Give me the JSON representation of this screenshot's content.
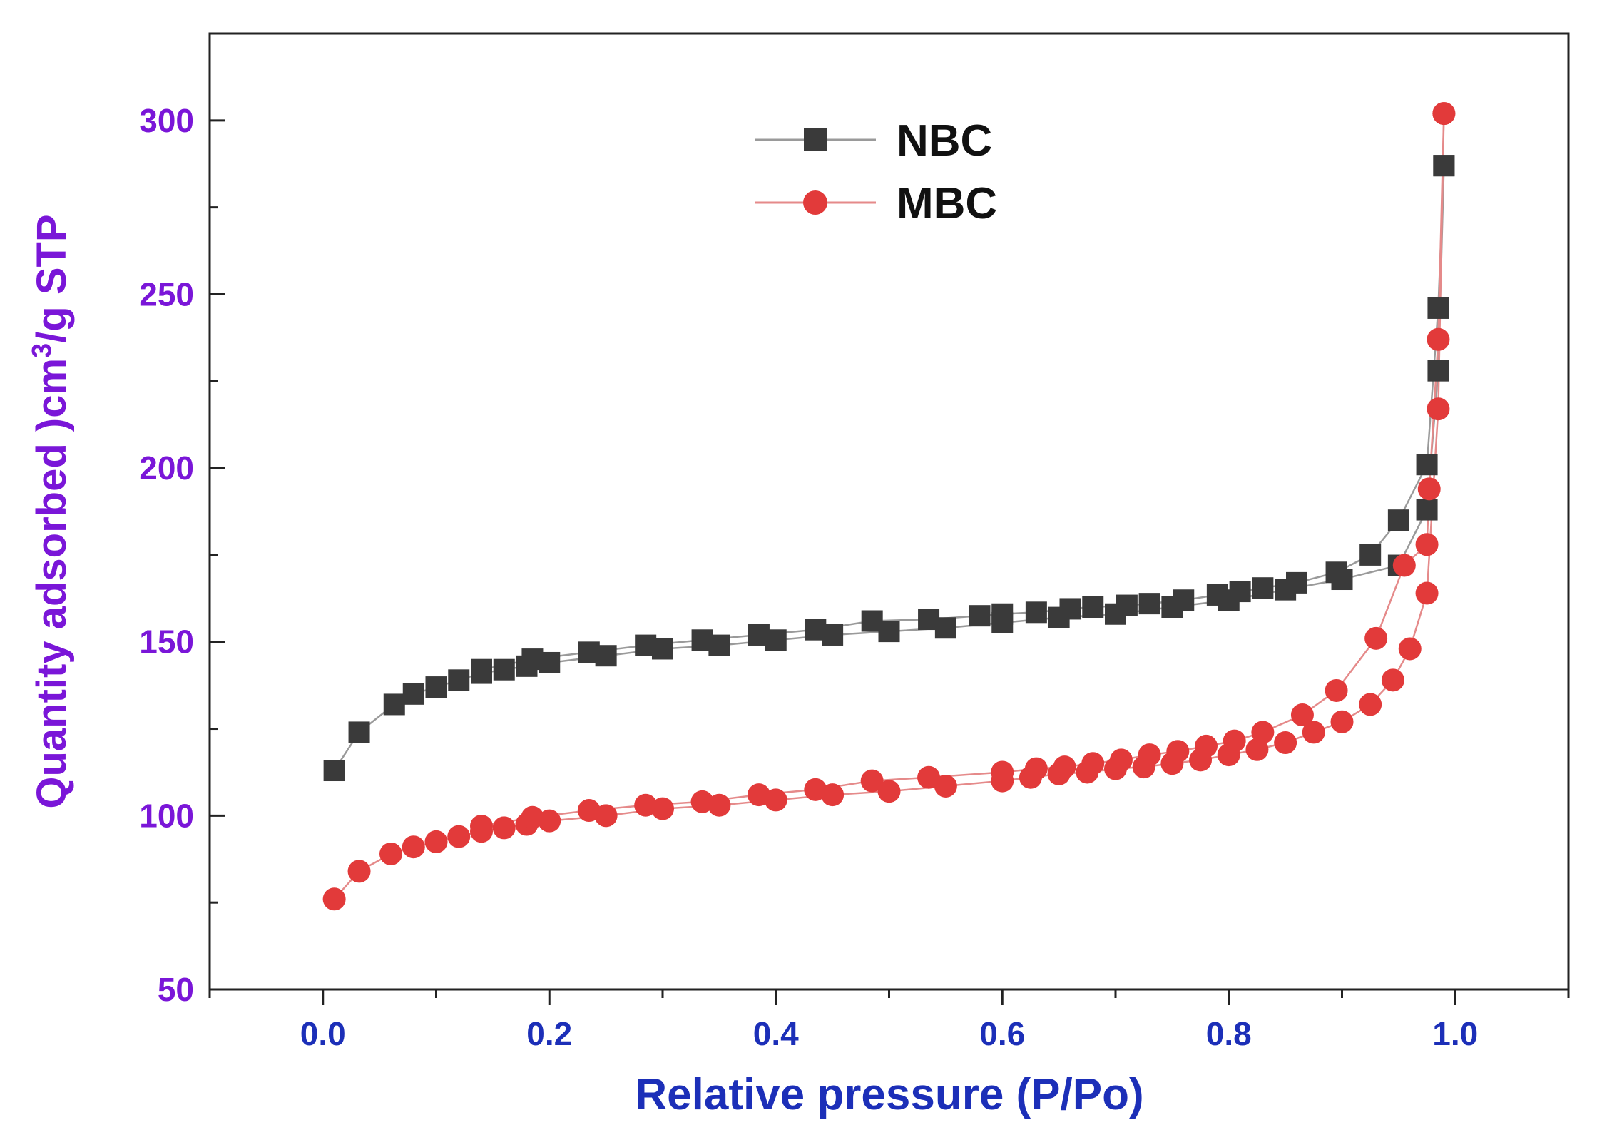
{
  "chart_data": {
    "type": "scatter",
    "title": "",
    "xlabel": "Relative pressure (P/Po)",
    "ylabel_parts": [
      "Quantity adsorbed )cm",
      "3",
      "/g STP"
    ],
    "xlim": [
      -0.1,
      1.1
    ],
    "ylim": [
      50,
      325
    ],
    "x_ticks": [
      0.0,
      0.2,
      0.4,
      0.6,
      0.8,
      1.0
    ],
    "x_tick_labels": [
      "0.0",
      "0.2",
      "0.4",
      "0.6",
      "0.8",
      "1.0"
    ],
    "y_ticks": [
      50,
      100,
      150,
      200,
      250,
      300
    ],
    "y_tick_labels": [
      "50",
      "100",
      "150",
      "200",
      "250",
      "300"
    ],
    "grid": false,
    "legend_position": "top-center",
    "series": [
      {
        "name": "NBC",
        "marker": "square",
        "color": "#3a3a3a",
        "line_color": "#9a9a9a",
        "adsorption": {
          "x": [
            0.01,
            0.032,
            0.063,
            0.08,
            0.1,
            0.12,
            0.14,
            0.16,
            0.18,
            0.2,
            0.25,
            0.3,
            0.35,
            0.4,
            0.45,
            0.5,
            0.55,
            0.6,
            0.65,
            0.7,
            0.75,
            0.8,
            0.85,
            0.9,
            0.95,
            0.975,
            0.985,
            0.99
          ],
          "y": [
            113,
            124,
            132,
            135,
            137,
            139,
            141,
            142,
            143,
            144,
            146,
            148,
            149,
            150.5,
            152,
            153,
            154,
            155.5,
            157,
            158,
            160,
            162,
            165,
            168,
            172,
            188,
            228,
            287
          ]
        },
        "desorption": {
          "x": [
            0.99,
            0.985,
            0.975,
            0.95,
            0.925,
            0.895,
            0.86,
            0.83,
            0.81,
            0.79,
            0.76,
            0.73,
            0.71,
            0.68,
            0.66,
            0.63,
            0.6,
            0.58,
            0.535,
            0.485,
            0.435,
            0.385,
            0.335,
            0.285,
            0.235,
            0.185,
            0.14
          ],
          "y": [
            287,
            246,
            201,
            185,
            175,
            170,
            167,
            165.5,
            164.5,
            163.5,
            162,
            161,
            160.5,
            160,
            159.5,
            158.5,
            158,
            157.5,
            156.5,
            156,
            153.5,
            152,
            150.5,
            149,
            147,
            145,
            142
          ]
        }
      },
      {
        "name": "MBC",
        "marker": "circle",
        "color": "#e23a3a",
        "line_color": "#e58a8a",
        "adsorption": {
          "x": [
            0.01,
            0.032,
            0.06,
            0.08,
            0.1,
            0.12,
            0.14,
            0.16,
            0.18,
            0.2,
            0.25,
            0.3,
            0.35,
            0.4,
            0.45,
            0.5,
            0.55,
            0.6,
            0.625,
            0.65,
            0.675,
            0.7,
            0.725,
            0.75,
            0.775,
            0.8,
            0.825,
            0.85,
            0.875,
            0.9,
            0.925,
            0.945,
            0.96,
            0.975,
            0.985,
            0.99
          ],
          "y": [
            76,
            84,
            89,
            91,
            92.5,
            94,
            95.5,
            96.5,
            97.5,
            98.5,
            100,
            102,
            103,
            104.5,
            106,
            107,
            108.5,
            110,
            111,
            112,
            112.5,
            113.5,
            114,
            115,
            116,
            117.5,
            119,
            121,
            124,
            127,
            132,
            139,
            148,
            164,
            217,
            302
          ]
        },
        "desorption": {
          "x": [
            0.99,
            0.985,
            0.977,
            0.975,
            0.955,
            0.93,
            0.895,
            0.865,
            0.83,
            0.805,
            0.78,
            0.755,
            0.73,
            0.705,
            0.68,
            0.655,
            0.63,
            0.6,
            0.535,
            0.485,
            0.435,
            0.385,
            0.335,
            0.285,
            0.235,
            0.185,
            0.14
          ],
          "y": [
            302,
            237,
            194,
            178,
            172,
            151,
            136,
            129,
            124,
            121.5,
            120,
            118.5,
            117.5,
            116,
            115,
            114,
            113.5,
            112.5,
            111,
            110,
            107.5,
            106,
            104,
            103,
            101.5,
            99.5,
            97
          ]
        }
      }
    ]
  }
}
